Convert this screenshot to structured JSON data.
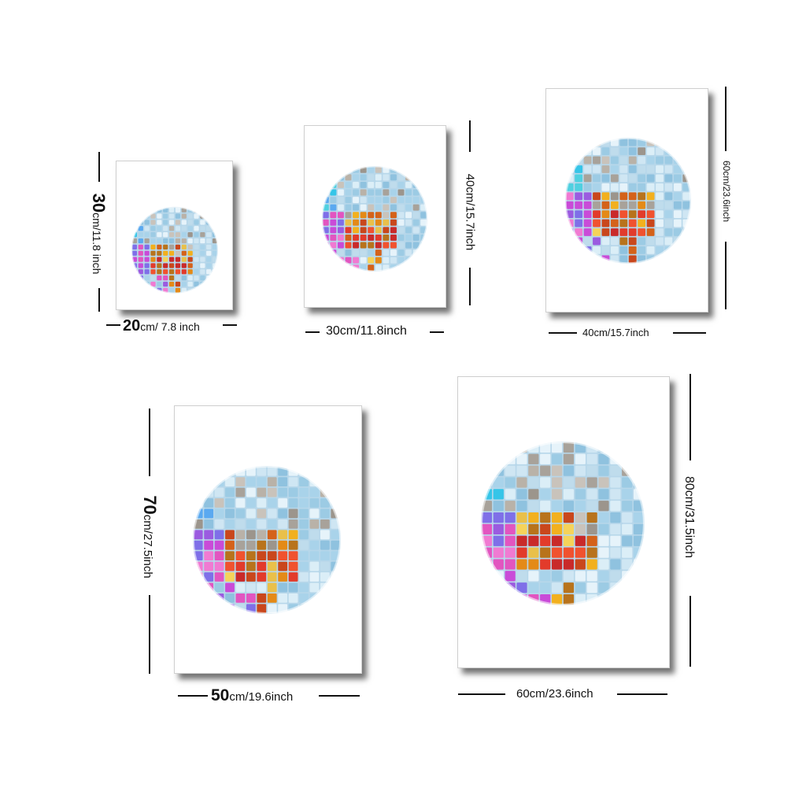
{
  "colors": {
    "background": "#ffffff",
    "frame": "#ffffff",
    "shadow": "#666666",
    "line": "#111111",
    "ball_base": "#b7d7ea"
  },
  "icons": [
    "disco-ball-icon"
  ],
  "posters": [
    {
      "id": "p1",
      "height_num": "30",
      "height_unit": "cm/11.8 inch",
      "width_num": "20",
      "width_unit": "cm/ 7.8 inch"
    },
    {
      "id": "p2",
      "height_label": "40cm/15.7inch",
      "width_label": "30cm/11.8inch"
    },
    {
      "id": "p3",
      "height_label": "60cm/23.6inch",
      "width_label": "40cm/15.7inch"
    },
    {
      "id": "p4",
      "height_num": "70",
      "height_unit": "cm/27.5inch",
      "width_num": "50",
      "width_unit": "cm/19.6inch"
    },
    {
      "id": "p5",
      "height_label": "80cm/31.5inch",
      "width_label": "60cm/23.6inch"
    }
  ]
}
